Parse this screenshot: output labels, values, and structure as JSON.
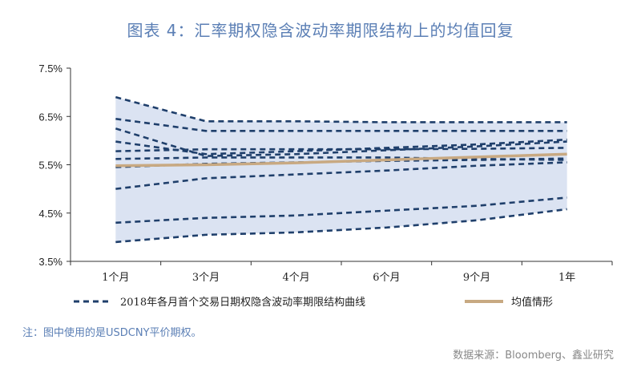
{
  "title": "图表 4：汇率期权隐含波动率期限结构上的均值回复",
  "note": "注：图中使用的是USDCNY平价期权。",
  "source": "数据来源：Bloomberg、鑫业研究",
  "colors": {
    "band": "#dbe3f2",
    "curves": "#1f3f6b",
    "mean": "#c8a982",
    "title": "#5b7fb5"
  },
  "chart_data": {
    "type": "line",
    "title": "图表 4：汇率期权隐含波动率期限结构上的均值回复",
    "categories": [
      "1个月",
      "3个月",
      "4个月",
      "6个月",
      "9个月",
      "1年"
    ],
    "ylim": [
      3.5,
      7.5
    ],
    "yticks": [
      "3.5%",
      "4.5%",
      "5.5%",
      "6.5%",
      "7.5%"
    ],
    "ytick_values": [
      3.5,
      4.5,
      5.5,
      6.5,
      7.5
    ],
    "legend": {
      "curves_label": "2018年各月首个交易日期权隐含波动率期限结构曲线",
      "mean_label": "均值情形",
      "placement": "bottom"
    },
    "series": [
      {
        "values": [
          6.9,
          6.4,
          6.4,
          6.38,
          6.38,
          6.38
        ]
      },
      {
        "values": [
          6.45,
          6.2,
          6.2,
          6.2,
          6.2,
          6.2
        ]
      },
      {
        "values": [
          6.25,
          5.68,
          5.72,
          5.8,
          5.88,
          5.98
        ]
      },
      {
        "values": [
          5.98,
          5.72,
          5.78,
          5.85,
          5.92,
          6.02
        ]
      },
      {
        "values": [
          5.78,
          5.82,
          5.82,
          5.82,
          5.83,
          5.85
        ]
      },
      {
        "values": [
          5.62,
          5.65,
          5.65,
          5.65,
          5.62,
          5.6
        ]
      },
      {
        "values": [
          5.45,
          5.52,
          5.55,
          5.58,
          5.6,
          5.63
        ]
      },
      {
        "values": [
          5.0,
          5.22,
          5.3,
          5.38,
          5.48,
          5.55
        ]
      },
      {
        "values": [
          4.3,
          4.4,
          4.45,
          4.55,
          4.65,
          4.82
        ]
      },
      {
        "values": [
          3.9,
          4.05,
          4.1,
          4.2,
          4.35,
          4.58
        ]
      }
    ],
    "mean": {
      "values": [
        5.48,
        5.5,
        5.54,
        5.6,
        5.66,
        5.72
      ]
    }
  }
}
